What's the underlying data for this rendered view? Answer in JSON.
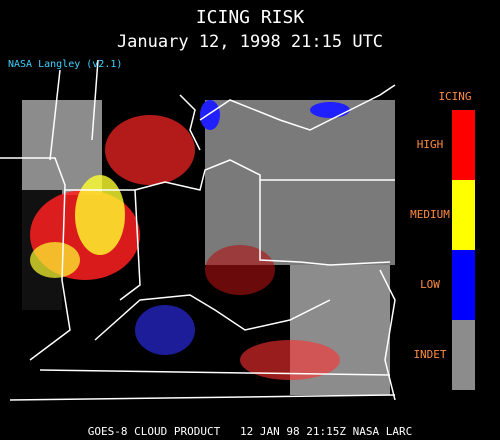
{
  "header": {
    "title": "ICING RISK",
    "subtitle": "January 12, 1998 21:15 UTC",
    "credit": "NASA Langley (v2.1)"
  },
  "legend": {
    "title": "ICING",
    "items": [
      {
        "label": "HIGH",
        "color": "#ff0000"
      },
      {
        "label": "MEDIUM",
        "color": "#ffff00"
      },
      {
        "label": "LOW",
        "color": "#0000ff"
      },
      {
        "label": "INDET",
        "color": "#8c8c8c"
      }
    ]
  },
  "footer": "GOES-8 CLOUD PRODUCT   12 JAN 98 21:15Z NASA LARC"
}
